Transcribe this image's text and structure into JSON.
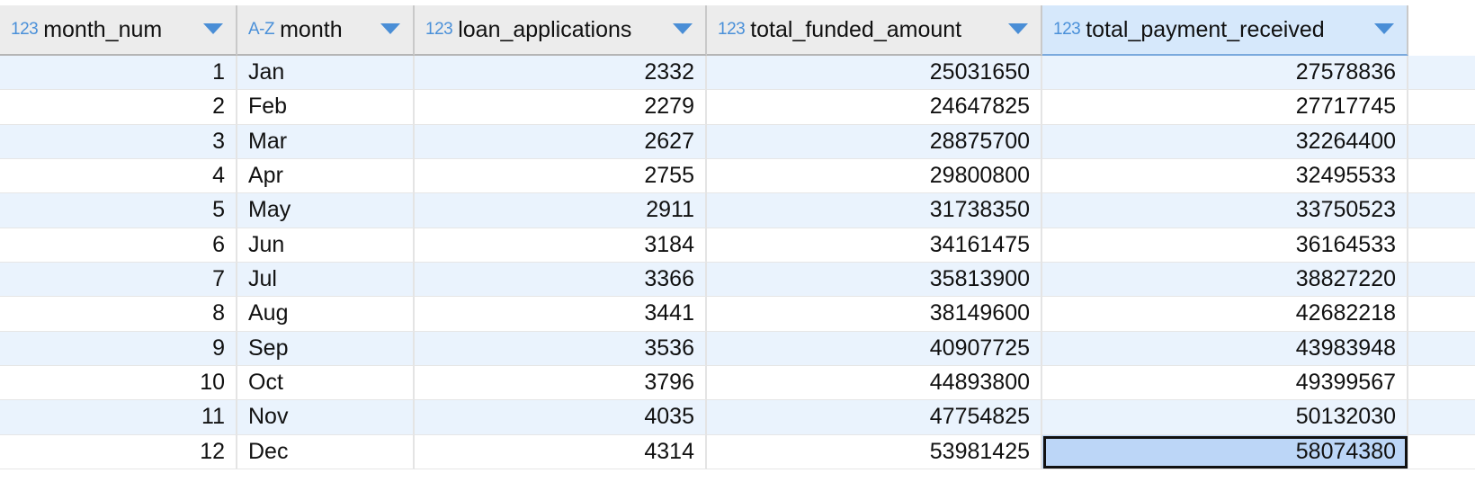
{
  "columns": [
    {
      "type": "123",
      "label": "month_num"
    },
    {
      "type": "A-Z",
      "label": "month"
    },
    {
      "type": "123",
      "label": "loan_applications"
    },
    {
      "type": "123",
      "label": "total_funded_amount"
    },
    {
      "type": "123",
      "label": "total_payment_received"
    }
  ],
  "rows": [
    {
      "month_num": "1",
      "month": "Jan",
      "loan_applications": "2332",
      "total_funded_amount": "25031650",
      "total_payment_received": "27578836"
    },
    {
      "month_num": "2",
      "month": "Feb",
      "loan_applications": "2279",
      "total_funded_amount": "24647825",
      "total_payment_received": "27717745"
    },
    {
      "month_num": "3",
      "month": "Mar",
      "loan_applications": "2627",
      "total_funded_amount": "28875700",
      "total_payment_received": "32264400"
    },
    {
      "month_num": "4",
      "month": "Apr",
      "loan_applications": "2755",
      "total_funded_amount": "29800800",
      "total_payment_received": "32495533"
    },
    {
      "month_num": "5",
      "month": "May",
      "loan_applications": "2911",
      "total_funded_amount": "31738350",
      "total_payment_received": "33750523"
    },
    {
      "month_num": "6",
      "month": "Jun",
      "loan_applications": "3184",
      "total_funded_amount": "34161475",
      "total_payment_received": "36164533"
    },
    {
      "month_num": "7",
      "month": "Jul",
      "loan_applications": "3366",
      "total_funded_amount": "35813900",
      "total_payment_received": "38827220"
    },
    {
      "month_num": "8",
      "month": "Aug",
      "loan_applications": "3441",
      "total_funded_amount": "38149600",
      "total_payment_received": "42682218"
    },
    {
      "month_num": "9",
      "month": "Sep",
      "loan_applications": "3536",
      "total_funded_amount": "40907725",
      "total_payment_received": "43983948"
    },
    {
      "month_num": "10",
      "month": "Oct",
      "loan_applications": "3796",
      "total_funded_amount": "44893800",
      "total_payment_received": "49399567"
    },
    {
      "month_num": "11",
      "month": "Nov",
      "loan_applications": "4035",
      "total_funded_amount": "47754825",
      "total_payment_received": "50132030"
    },
    {
      "month_num": "12",
      "month": "Dec",
      "loan_applications": "4314",
      "total_funded_amount": "53981425",
      "total_payment_received": "58074380"
    }
  ],
  "selected_cell": {
    "row": 11,
    "column": "total_payment_received"
  },
  "colors": {
    "header_bg": "#ececec",
    "selected_header_bg": "#d6e8fb",
    "alt_row_bg": "#eaf3fd",
    "active_cell_bg": "#bcd6f7",
    "type_icon": "#4a90d9"
  }
}
